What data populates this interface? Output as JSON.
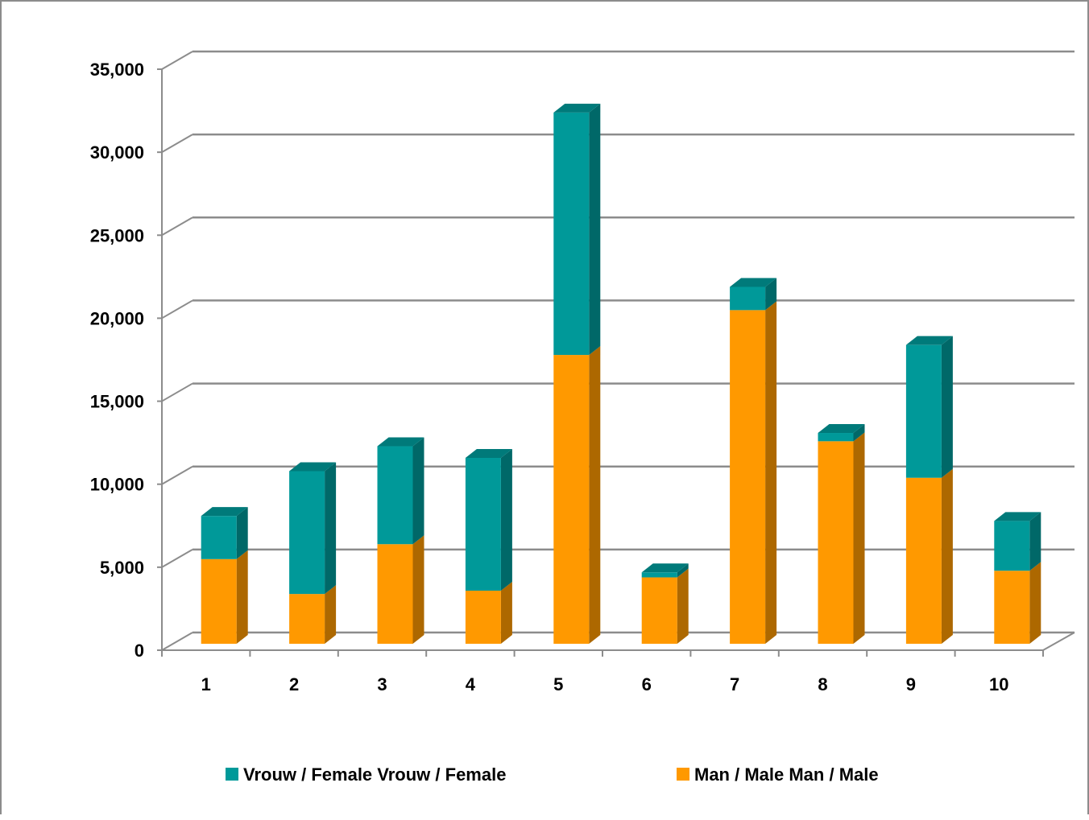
{
  "chart_data": {
    "type": "bar",
    "stacked": true,
    "three_d": true,
    "categories": [
      "1",
      "2",
      "3",
      "4",
      "5",
      "6",
      "7",
      "8",
      "9",
      "10"
    ],
    "series": [
      {
        "name": "Man / Male Man / Male",
        "color": "#ff9900",
        "values": [
          5100,
          3000,
          6000,
          3200,
          17400,
          4000,
          20100,
          12200,
          10000,
          4400
        ]
      },
      {
        "name": "Vrouw / Female Vrouw / Female",
        "color": "#009999",
        "values": [
          2600,
          7400,
          5900,
          8000,
          14600,
          300,
          1400,
          500,
          8000,
          3000
        ]
      }
    ],
    "ylim": [
      0,
      35000
    ],
    "y_ticks": [
      "0",
      "5,000",
      "10,000",
      "15,000",
      "20,000",
      "25,000",
      "30,000",
      "35,000"
    ],
    "grid": true,
    "legend": "bottom"
  }
}
